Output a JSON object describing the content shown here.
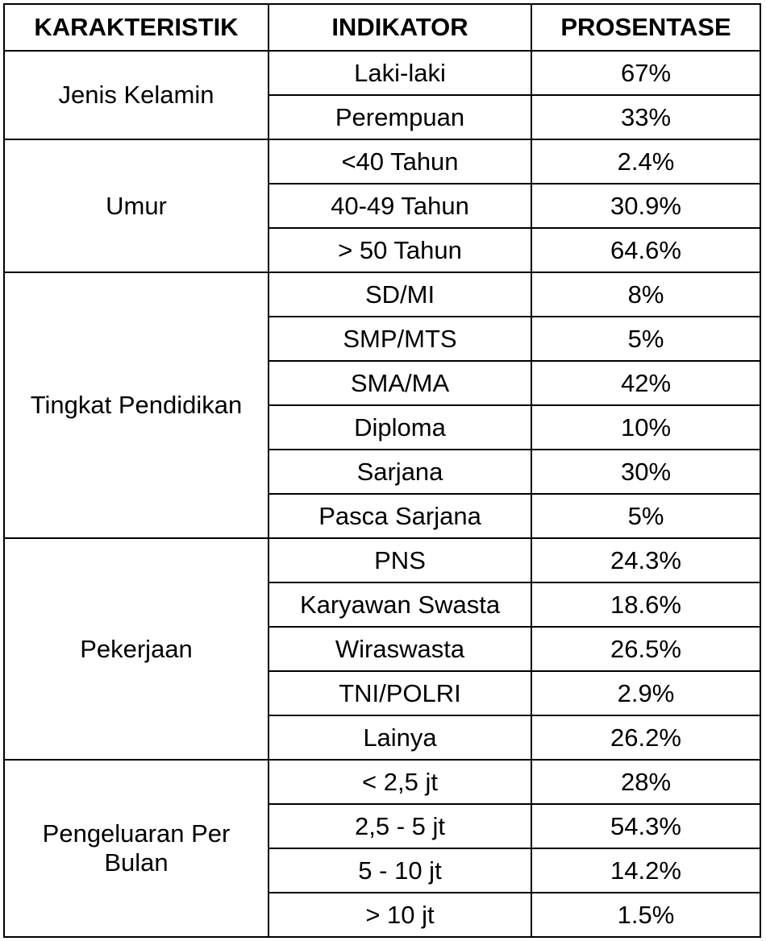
{
  "headers": {
    "karakteristik": "KARAKTERISTIK",
    "indikator": "INDIKATOR",
    "prosentase": "PROSENTASE"
  },
  "groups": [
    {
      "name": "Jenis Kelamin",
      "rows": [
        {
          "indikator": "Laki-laki",
          "prosentase": "67%"
        },
        {
          "indikator": "Perempuan",
          "prosentase": "33%"
        }
      ]
    },
    {
      "name": "Umur",
      "rows": [
        {
          "indikator": "<40 Tahun",
          "prosentase": "2.4%"
        },
        {
          "indikator": "40-49 Tahun",
          "prosentase": "30.9%"
        },
        {
          "indikator": "> 50 Tahun",
          "prosentase": "64.6%"
        }
      ]
    },
    {
      "name": "Tingkat Pendidikan",
      "rows": [
        {
          "indikator": "SD/MI",
          "prosentase": "8%"
        },
        {
          "indikator": "SMP/MTS",
          "prosentase": "5%"
        },
        {
          "indikator": "SMA/MA",
          "prosentase": "42%"
        },
        {
          "indikator": "Diploma",
          "prosentase": "10%"
        },
        {
          "indikator": "Sarjana",
          "prosentase": "30%"
        },
        {
          "indikator": "Pasca Sarjana",
          "prosentase": "5%"
        }
      ]
    },
    {
      "name": "Pekerjaan",
      "rows": [
        {
          "indikator": "PNS",
          "prosentase": "24.3%"
        },
        {
          "indikator": "Karyawan Swasta",
          "prosentase": "18.6%"
        },
        {
          "indikator": "Wiraswasta",
          "prosentase": "26.5%"
        },
        {
          "indikator": "TNI/POLRI",
          "prosentase": "2.9%"
        },
        {
          "indikator": "Lainya",
          "prosentase": "26.2%"
        }
      ]
    },
    {
      "name": "Pengeluaran Per Bulan",
      "rows": [
        {
          "indikator": "< 2,5 jt",
          "prosentase": "28%"
        },
        {
          "indikator": "2,5 - 5 jt",
          "prosentase": "54.3%"
        },
        {
          "indikator": "5 - 10 jt",
          "prosentase": "14.2%"
        },
        {
          "indikator": "> 10 jt",
          "prosentase": "1.5%"
        }
      ]
    }
  ]
}
